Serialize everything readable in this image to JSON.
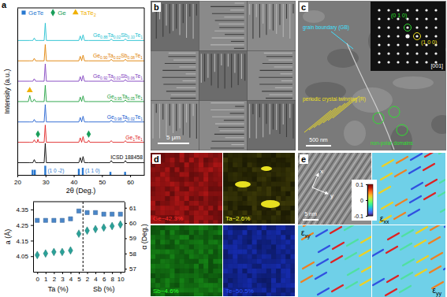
{
  "chart_data": [
    {
      "type": "line",
      "panel": "a",
      "xlabel": "2θ (Deg.)",
      "ylabel": "Intensity (a.u.)",
      "x": [
        20,
        23.9,
        24.4,
        24.9,
        25.5,
        26,
        26.5,
        27,
        27.3,
        27.6,
        29.5,
        29.9,
        30.3,
        41.8,
        42.3,
        42.8,
        43.3,
        43.8,
        44.9,
        45.3,
        45.7,
        52.8,
        53.3,
        53.8,
        57.8,
        58.3,
        58.8,
        65
      ],
      "xlim": [
        20,
        65
      ],
      "xticks": [
        20,
        30,
        40,
        50,
        60
      ],
      "ylim": [
        -0.6,
        7.6
      ],
      "tick_labels": "x",
      "legend": "top-left",
      "series": [
        {
          "name": "ICSD 188458",
          "type": "line",
          "color": "#000000",
          "values": [
            0,
            0,
            0,
            0,
            0,
            0.15,
            0,
            0,
            0,
            0,
            0,
            0.95,
            0,
            0,
            0.25,
            0,
            0.3,
            0,
            0,
            0,
            0,
            0,
            0.1,
            0,
            0,
            0.1,
            0,
            0
          ]
        },
        {
          "name": "Ge1Te1",
          "type": "line",
          "color": "#e02020",
          "values": [
            1,
            1,
            1,
            1,
            1,
            1.12,
            1,
            1,
            1.15,
            1,
            1,
            1.85,
            1,
            1,
            1.22,
            1,
            1.28,
            1,
            1,
            1.1,
            1,
            1,
            1.08,
            1,
            1,
            1.08,
            1,
            1
          ]
        },
        {
          "name": "Ge0.98Ta0.02Te1",
          "type": "line",
          "color": "#2060d0",
          "values": [
            2,
            2,
            2,
            2,
            2,
            2.12,
            2,
            2,
            2,
            2,
            2,
            2.85,
            2,
            2,
            2.22,
            2,
            2.28,
            2,
            2,
            2,
            2,
            2,
            2.08,
            2,
            2,
            2.08,
            2,
            2
          ]
        },
        {
          "name": "Ge0.95Ta0.05Te1",
          "type": "line",
          "color": "#20a040",
          "values": [
            3,
            3,
            3.3,
            3,
            3,
            3.12,
            3,
            3,
            3,
            3,
            3,
            3.8,
            3,
            3,
            3.22,
            3,
            3.28,
            3,
            3,
            3,
            3,
            3,
            3.08,
            3,
            3,
            3.08,
            3,
            3
          ]
        },
        {
          "name": "Ge0.92Ta0.02Sb0.06Te1",
          "type": "line",
          "color": "#8040c0",
          "values": [
            4,
            4,
            4,
            4,
            4,
            4.12,
            4,
            4,
            4,
            4,
            4,
            4.85,
            4,
            4,
            4.22,
            4,
            4.28,
            4,
            4,
            4,
            4,
            4,
            4.08,
            4,
            4,
            4.08,
            4,
            4
          ]
        },
        {
          "name": "Ge0.90Ta0.02Sb0.08Te1",
          "type": "line",
          "color": "#e08000",
          "values": [
            5,
            5,
            5,
            5,
            5,
            5.12,
            5,
            5,
            5,
            5,
            5,
            5.8,
            5,
            5,
            5.22,
            5,
            5.28,
            5,
            5,
            5,
            5,
            5,
            5.08,
            5,
            5,
            5.08,
            5,
            5
          ]
        },
        {
          "name": "Ge0.88Ta0.02Sb0.10Te1",
          "type": "line",
          "color": "#20c0d0",
          "values": [
            6,
            6,
            6,
            6,
            6,
            6.12,
            6,
            6,
            6,
            6,
            6,
            6.85,
            6,
            6,
            6.22,
            6,
            6.28,
            6,
            6,
            6,
            6,
            6,
            6.08,
            6,
            6,
            6.08,
            6,
            6
          ]
        },
        {
          "name": "GeTe",
          "type": "stick",
          "marker": "square",
          "color": "#2878d0",
          "x": [
            25.4,
            26.2,
            29.9,
            41.8,
            43.2,
            53.0,
            58.2
          ],
          "values": [
            -0.35,
            -0.35,
            -0.15,
            -0.3,
            -0.25,
            -0.45,
            -0.45
          ]
        },
        {
          "name": "Ge",
          "type": "scatter",
          "marker": "diamond",
          "color": "#1a9e5a",
          "x": [
            27.3,
            45.3
          ],
          "values": [
            1.4,
            1.4
          ]
        },
        {
          "name": "TaTe2",
          "type": "scatter",
          "marker": "triangle",
          "color": "#f0b000",
          "x": [
            24.4
          ],
          "values": [
            3.55
          ]
        }
      ],
      "annotations": [
        {
          "text": "(1 0 -2)",
          "x": 29.9
        },
        {
          "text": "(1 1 0)",
          "x": 43.2
        }
      ]
    },
    {
      "type": "scatter",
      "categories": [
        "0",
        "1",
        "2",
        "3",
        "4",
        "5",
        "2",
        "4",
        "6",
        "8",
        "10"
      ],
      "xlabel": [
        "Ta (%)",
        "Sb (%)"
      ],
      "ylabel": "a (Å)",
      "y2label": "α (Deg.)",
      "ylim": [
        3.95,
        4.4
      ],
      "yticks": [
        4.05,
        4.15,
        4.25,
        4.35
      ],
      "y2lim": [
        56.8,
        61.4
      ],
      "y2ticks": [
        57,
        58,
        59,
        60,
        61
      ],
      "series": [
        {
          "marker": "square",
          "color": "#4a86c8",
          "values": [
            4.28,
            4.28,
            4.28,
            4.28,
            4.29,
            4.34,
            4.33,
            4.33,
            4.32,
            4.32,
            4.32
          ]
        },
        {
          "marker": "diamond",
          "color": "#2aa198",
          "axis": "y2",
          "values": [
            57.9,
            58.0,
            58.1,
            58.1,
            58.2,
            59.3,
            59.5,
            59.6,
            59.7,
            59.8,
            59.9
          ]
        }
      ]
    }
  ],
  "panels": {
    "b": {
      "label": "b",
      "scale_bar": "5 μm"
    },
    "c": {
      "label": "c",
      "grain_boundary": "grain boundary (GB)",
      "twinning": "periodic crystal twinning (R)",
      "domains": "non-polar domains",
      "scale_bar": "500 nm",
      "inset": {
        "spot_a": "(0 1 0)",
        "spot_b": "(1 0 0)",
        "zone_axis": "[001]"
      }
    },
    "d": {
      "label": "d",
      "maps": [
        {
          "label": "Ge~42.3%",
          "color": "#ff2020"
        },
        {
          "label": "Ta~2.6%",
          "color": "#e8e020"
        },
        {
          "label": "Sb~4.6%",
          "color": "#20c020"
        },
        {
          "label": "Te~50.5%",
          "color": "#2040ff"
        }
      ]
    },
    "e": {
      "label": "e",
      "axes": [
        "x",
        "y"
      ],
      "scale_bar": "5 nm",
      "maps": [
        "εxx",
        "εxy",
        "εyy"
      ],
      "colorbar": {
        "range": [
          -0.1,
          0.1
        ],
        "ticks": [
          0.1,
          0,
          -0.1
        ]
      }
    }
  }
}
